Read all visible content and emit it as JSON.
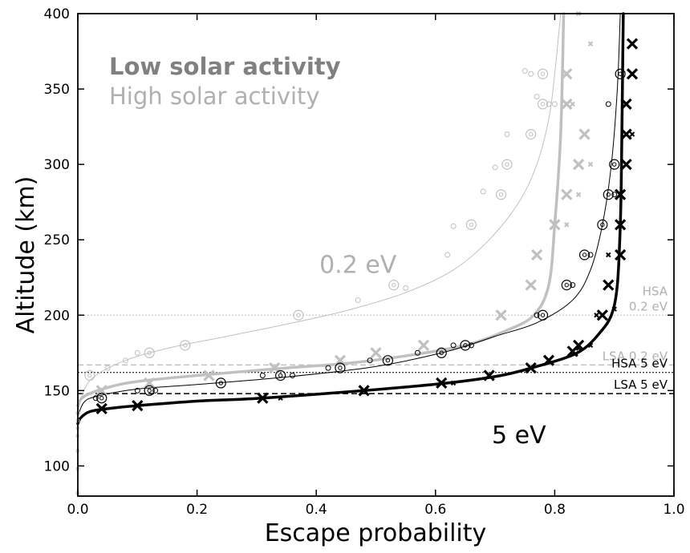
{
  "chart_data": {
    "type": "scatter",
    "xlabel": "Escape probability",
    "ylabel": "Altitude (km)",
    "xlim": [
      0.0,
      1.0
    ],
    "ylim": [
      80,
      400
    ],
    "xticks": [
      0.0,
      0.2,
      0.4,
      0.6,
      0.8,
      1.0
    ],
    "xtick_labels": [
      "0.0",
      "0.2",
      "0.4",
      "0.6",
      "0.8",
      "1.0"
    ],
    "yticks": [
      100,
      150,
      200,
      250,
      300,
      350,
      400
    ],
    "ytick_labels": [
      "100",
      "150",
      "200",
      "250",
      "300",
      "350",
      "400"
    ],
    "grid": false,
    "colors": {
      "low_solar": "#000000",
      "high_solar": "#c0c0c0",
      "dark_gray": "#808080",
      "light_gray": "#b0b0b0"
    },
    "legend": {
      "placement": "top-left",
      "entries": [
        {
          "label": "Low solar activity",
          "color": "#808080",
          "weight": "bold"
        },
        {
          "label": "High solar activity",
          "color": "#b0b0b0",
          "weight": "normal"
        }
      ]
    },
    "annotations": [
      {
        "text": "0.2 eV",
        "x": 0.47,
        "y": 228,
        "color": "#b0b0b0"
      },
      {
        "text": "5 eV",
        "x": 0.74,
        "y": 115,
        "color": "#000000"
      }
    ],
    "reference_lines": [
      {
        "label": "HSA 0.2 eV",
        "lines": [
          "HSA",
          "0.2 eV"
        ],
        "y": 200,
        "style": "dotted",
        "color": "#c0c0c0"
      },
      {
        "label": "LSA 0.2 eV",
        "lines": [
          "LSA 0.2 eV"
        ],
        "y": 167,
        "style": "dashed",
        "color": "#c0c0c0"
      },
      {
        "label": "HSA 5 eV",
        "lines": [
          "HSA 5 eV"
        ],
        "y": 162,
        "style": "dotted",
        "color": "#000000"
      },
      {
        "label": "LSA 5 eV",
        "lines": [
          "LSA 5 eV"
        ],
        "y": 148,
        "style": "dashed",
        "color": "#000000"
      }
    ],
    "curves": [
      {
        "energy": "0.2 eV",
        "activity": "high",
        "color": "#c0c0c0",
        "width": 1.0,
        "points": [
          [
            0.0,
            135
          ],
          [
            0.01,
            150
          ],
          [
            0.03,
            160
          ],
          [
            0.08,
            170
          ],
          [
            0.15,
            178
          ],
          [
            0.25,
            186
          ],
          [
            0.35,
            194
          ],
          [
            0.45,
            203
          ],
          [
            0.55,
            215
          ],
          [
            0.63,
            230
          ],
          [
            0.69,
            250
          ],
          [
            0.74,
            275
          ],
          [
            0.77,
            300
          ],
          [
            0.79,
            330
          ],
          [
            0.8,
            360
          ],
          [
            0.81,
            400
          ]
        ]
      },
      {
        "energy": "0.2 eV",
        "activity": "low",
        "color": "#c0c0c0",
        "width": 3.5,
        "points": [
          [
            0.0,
            140
          ],
          [
            0.01,
            146
          ],
          [
            0.05,
            152
          ],
          [
            0.1,
            156
          ],
          [
            0.2,
            160
          ],
          [
            0.35,
            165
          ],
          [
            0.45,
            168
          ],
          [
            0.55,
            173
          ],
          [
            0.65,
            180
          ],
          [
            0.72,
            190
          ],
          [
            0.765,
            200
          ],
          [
            0.79,
            220
          ],
          [
            0.8,
            260
          ],
          [
            0.81,
            320
          ],
          [
            0.815,
            400
          ]
        ]
      },
      {
        "energy": "5 eV",
        "activity": "high",
        "color": "#000000",
        "width": 1.0,
        "points": [
          [
            0.0,
            133
          ],
          [
            0.01,
            142
          ],
          [
            0.03,
            146
          ],
          [
            0.1,
            151
          ],
          [
            0.2,
            154
          ],
          [
            0.35,
            159
          ],
          [
            0.5,
            166
          ],
          [
            0.62,
            176
          ],
          [
            0.7,
            186
          ],
          [
            0.77,
            195
          ],
          [
            0.83,
            210
          ],
          [
            0.86,
            230
          ],
          [
            0.88,
            260
          ],
          [
            0.895,
            300
          ],
          [
            0.905,
            350
          ],
          [
            0.91,
            400
          ]
        ]
      },
      {
        "energy": "5 eV",
        "activity": "low",
        "color": "#000000",
        "width": 3.5,
        "points": [
          [
            0.0,
            128
          ],
          [
            0.005,
            132
          ],
          [
            0.02,
            136
          ],
          [
            0.05,
            138
          ],
          [
            0.1,
            140
          ],
          [
            0.2,
            143
          ],
          [
            0.31,
            145
          ],
          [
            0.48,
            150
          ],
          [
            0.62,
            155
          ],
          [
            0.71,
            160
          ],
          [
            0.77,
            166
          ],
          [
            0.82,
            172
          ],
          [
            0.85,
            178
          ],
          [
            0.875,
            188
          ],
          [
            0.895,
            200
          ],
          [
            0.905,
            220
          ],
          [
            0.91,
            260
          ],
          [
            0.912,
            300
          ],
          [
            0.915,
            400
          ]
        ]
      }
    ],
    "markers": [
      {
        "marker": "x",
        "color": "#c0c0c0",
        "size": "large",
        "x": [
          0.04,
          0.12,
          0.22,
          0.33,
          0.44,
          0.5,
          0.58,
          0.71,
          0.76,
          0.77,
          0.8,
          0.82,
          0.84,
          0.85,
          0.82,
          0.82
        ],
        "y": [
          150,
          155,
          160,
          165,
          170,
          175,
          180,
          200,
          220,
          240,
          260,
          280,
          300,
          320,
          340,
          360
        ]
      },
      {
        "marker": "x",
        "color": "#c0c0c0",
        "size": "small",
        "x": [
          0.77,
          0.82,
          0.84,
          0.86,
          0.85,
          0.83,
          0.86,
          0.84
        ],
        "y": [
          240,
          260,
          280,
          300,
          320,
          340,
          380,
          400
        ]
      },
      {
        "marker": "circle",
        "color": "#c0c0c0",
        "size": "large",
        "x": [
          0.37,
          0.53,
          0.66,
          0.71,
          0.72,
          0.76,
          0.78,
          0.78,
          0.02,
          0.12,
          0.18
        ],
        "y": [
          200,
          220,
          260,
          280,
          300,
          320,
          340,
          360,
          160,
          175,
          180
        ]
      },
      {
        "marker": "circle",
        "color": "#c0c0c0",
        "size": "small",
        "x": [
          0.47,
          0.55,
          0.62,
          0.63,
          0.68,
          0.7,
          0.72,
          0.75,
          0.79,
          0.77,
          0.8,
          0.76,
          0.1,
          0.08,
          0.05
        ],
        "y": [
          210,
          218,
          240,
          259,
          282,
          298,
          320,
          362,
          340,
          345,
          340,
          360,
          175,
          170,
          165
        ]
      },
      {
        "marker": "circle",
        "color": "#c0c0c0",
        "size": "tiny",
        "x": [
          0.0,
          0.0,
          0.0,
          0.0,
          0.0,
          0.0,
          0.0
        ],
        "y": [
          82,
          98,
          110,
          120,
          125,
          130,
          135
        ]
      },
      {
        "marker": "x",
        "color": "#000000",
        "size": "large",
        "x": [
          0.04,
          0.1,
          0.31,
          0.48,
          0.61,
          0.69,
          0.76,
          0.79,
          0.84,
          0.83,
          0.88,
          0.89,
          0.91,
          0.91,
          0.91,
          0.92,
          0.92,
          0.92,
          0.93,
          0.93
        ],
        "y": [
          138,
          140,
          145,
          150,
          155,
          160,
          165,
          170,
          180,
          176,
          200,
          220,
          240,
          260,
          280,
          300,
          320,
          340,
          360,
          380
        ]
      },
      {
        "marker": "x",
        "color": "#000000",
        "size": "small",
        "x": [
          0.34,
          0.63,
          0.86,
          0.87,
          0.9,
          0.84,
          0.89,
          0.93
        ],
        "y": [
          145,
          155,
          180,
          200,
          204,
          178,
          240,
          320
        ]
      },
      {
        "marker": "circle",
        "color": "#000000",
        "size": "large",
        "x": [
          0.04,
          0.12,
          0.24,
          0.34,
          0.44,
          0.52,
          0.61,
          0.65,
          0.78,
          0.82,
          0.85,
          0.88,
          0.89,
          0.9,
          0.91
        ],
        "y": [
          145,
          150,
          155,
          160,
          165,
          170,
          175,
          180,
          200,
          220,
          240,
          260,
          280,
          300,
          360
        ]
      },
      {
        "marker": "circle",
        "color": "#000000",
        "size": "small",
        "x": [
          0.03,
          0.1,
          0.13,
          0.31,
          0.36,
          0.42,
          0.49,
          0.57,
          0.63,
          0.66,
          0.77,
          0.83,
          0.86,
          0.9,
          0.89
        ],
        "y": [
          145,
          150,
          150,
          160,
          160,
          165,
          170,
          175,
          180,
          180,
          200,
          220,
          240,
          280,
          340
        ]
      }
    ]
  }
}
